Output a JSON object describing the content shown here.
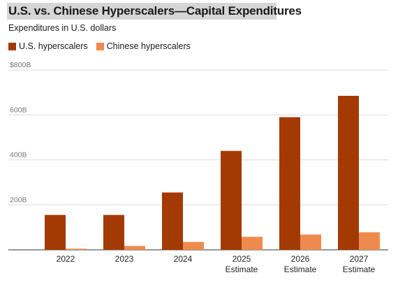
{
  "chart_data": {
    "type": "bar",
    "title": "U.S. vs. Chinese Hyperscalers—Capital Expenditures",
    "subtitle": "Expenditures in U.S. dollars",
    "categories": [
      [
        "2022"
      ],
      [
        "2023"
      ],
      [
        "2024"
      ],
      [
        "2025",
        "Estimate"
      ],
      [
        "2026",
        "Estimate"
      ],
      [
        "2027",
        "Estimate"
      ]
    ],
    "series": [
      {
        "name": "U.S. hyperscalers",
        "color": "#a33a04",
        "values": [
          155,
          155,
          255,
          440,
          590,
          685
        ]
      },
      {
        "name": "Chinese hyperscalers",
        "color": "#ef8a4f",
        "values": [
          5,
          17,
          35,
          58,
          68,
          78
        ]
      }
    ],
    "y_ticks": [
      {
        "value": 0,
        "label": ""
      },
      {
        "value": 200,
        "label": "200B"
      },
      {
        "value": 400,
        "label": "400B"
      },
      {
        "value": 600,
        "label": "600B"
      },
      {
        "value": 800,
        "label": "$800B"
      }
    ],
    "ylim": [
      0,
      800
    ],
    "xlabel": "",
    "ylabel": "",
    "grid": true,
    "legend_position": "top-left"
  }
}
